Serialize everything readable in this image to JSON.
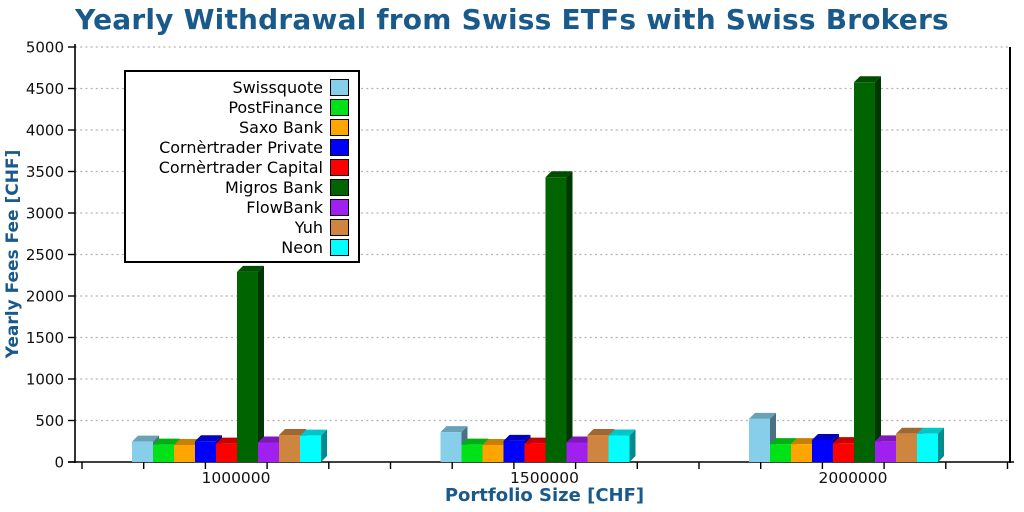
{
  "colors": {
    "title": "#1A5A8A",
    "axis_label": "#1A5A8A",
    "tick_label": "#111111",
    "grid": "#B3B3B3",
    "spine": "#000000",
    "legend_border": "#000000",
    "background": "#FFFFFF"
  },
  "chart_data": {
    "type": "bar",
    "style": "pseudo-3d-grouped-bars",
    "title": "Yearly Withdrawal from Swiss ETFs with Swiss Brokers",
    "xlabel": "Portfolio Size [CHF]",
    "ylabel": "Yearly Fees Fee [CHF]",
    "categories": [
      "1000000",
      "1500000",
      "2000000"
    ],
    "series": [
      {
        "name": "Swissquote",
        "color": "#87CEEB",
        "values": [
          245,
          360,
          520
        ]
      },
      {
        "name": "PostFinance",
        "color": "#00E117",
        "values": [
          210,
          210,
          215
        ]
      },
      {
        "name": "Saxo Bank",
        "color": "#FFA500",
        "values": [
          205,
          205,
          215
        ]
      },
      {
        "name": "Cornèrtrader Private",
        "color": "#0000FF",
        "values": [
          250,
          255,
          265
        ]
      },
      {
        "name": "Cornèrtrader Capital",
        "color": "#FF0000",
        "values": [
          222,
          222,
          227
        ]
      },
      {
        "name": "Migros Bank",
        "color": "#006400",
        "values": [
          2290,
          3430,
          4575
        ]
      },
      {
        "name": "FlowBank",
        "color": "#A020F0",
        "values": [
          235,
          235,
          248
        ]
      },
      {
        "name": "Yuh",
        "color": "#CD853F",
        "values": [
          325,
          325,
          340
        ]
      },
      {
        "name": "Neon",
        "color": "#00FFFF",
        "values": [
          318,
          320,
          340
        ]
      }
    ],
    "ylim": [
      0,
      5000
    ],
    "yticks": [
      0,
      500,
      1000,
      1500,
      2000,
      2500,
      3000,
      3500,
      4000,
      4500,
      5000
    ],
    "grid": "horizontal-dotted",
    "legend_position": "upper-left"
  }
}
